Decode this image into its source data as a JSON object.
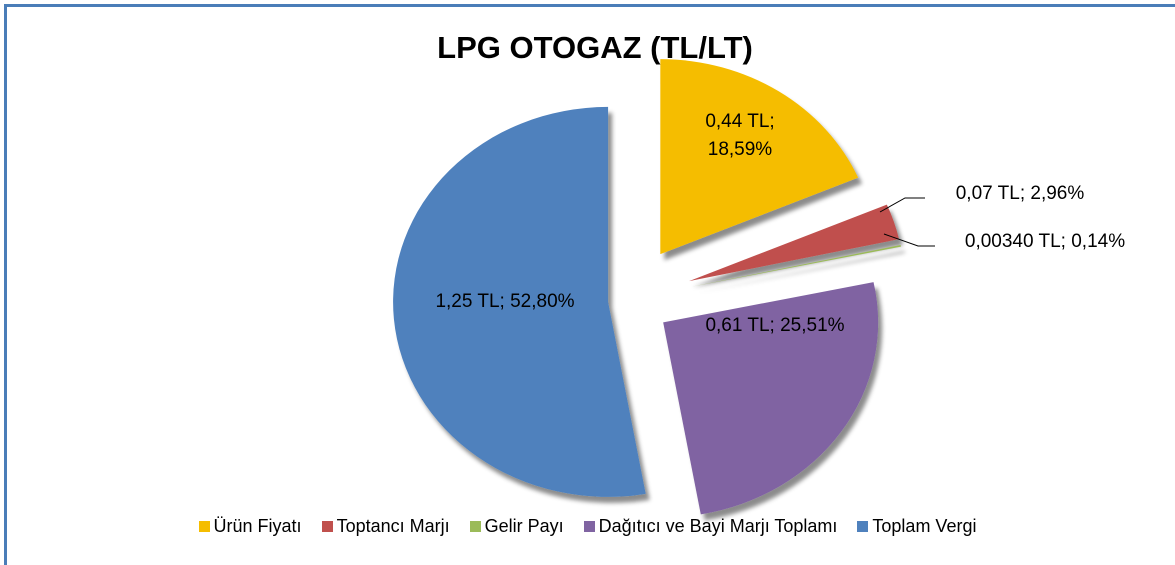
{
  "chart_data": {
    "type": "pie",
    "title": "LPG OTOGAZ (TL/LT)",
    "categories": [
      "Ürün Fiyatı",
      "Toptancı Marjı",
      "Gelir Payı",
      "Dağıtıcı ve Bayi Marjı Toplamı",
      "Toplam Vergi"
    ],
    "values": [
      18.59,
      2.96,
      0.14,
      25.51,
      52.8
    ],
    "value_labels": [
      "0,44 TL; 18,59%",
      "0,07 TL; 2,96%",
      "0,00340 TL; 0,14%",
      "0,61 TL; 25,51%",
      "1,25 TL; 52,80%"
    ],
    "colors": [
      "#f5bd00",
      "#c0504d",
      "#9bbb59",
      "#8064a2",
      "#4f81bd"
    ],
    "legend": "bottom"
  }
}
